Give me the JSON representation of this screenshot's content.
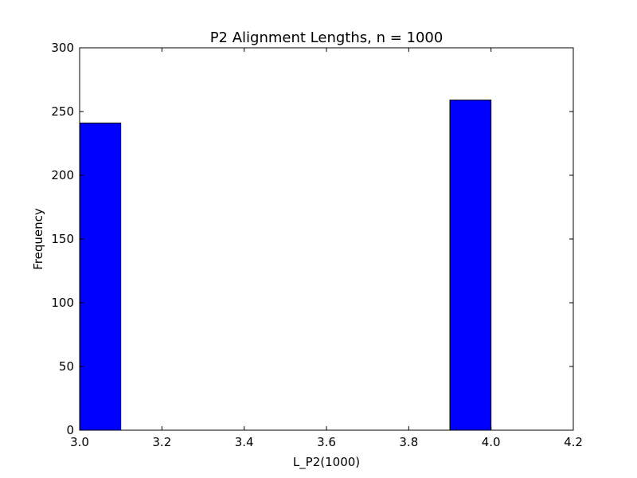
{
  "chart_data": {
    "type": "bar",
    "title": "P2 Alignment Lengths, n = 1000",
    "xlabel": "L_P2(1000)",
    "ylabel": "Frequency",
    "xlim": [
      3.0,
      4.2
    ],
    "ylim": [
      0,
      300
    ],
    "xticks": [
      "3.0",
      "3.2",
      "3.4",
      "3.6",
      "3.8",
      "4.0",
      "4.2"
    ],
    "yticks": [
      "0",
      "50",
      "100",
      "150",
      "200",
      "250",
      "300"
    ],
    "bins": [
      {
        "x0": 3.0,
        "x1": 3.1,
        "value": 241
      },
      {
        "x0": 3.1,
        "x1": 3.2,
        "value": 0
      },
      {
        "x0": 3.2,
        "x1": 3.3,
        "value": 0
      },
      {
        "x0": 3.3,
        "x1": 3.4,
        "value": 0
      },
      {
        "x0": 3.4,
        "x1": 3.5,
        "value": 0
      },
      {
        "x0": 3.5,
        "x1": 3.6,
        "value": 0
      },
      {
        "x0": 3.6,
        "x1": 3.7,
        "value": 0
      },
      {
        "x0": 3.7,
        "x1": 3.8,
        "value": 0
      },
      {
        "x0": 3.8,
        "x1": 3.9,
        "value": 0
      },
      {
        "x0": 3.9,
        "x1": 4.0,
        "value": 259
      }
    ],
    "bar_color": "#0000ff",
    "grid": false,
    "legend": "none"
  }
}
